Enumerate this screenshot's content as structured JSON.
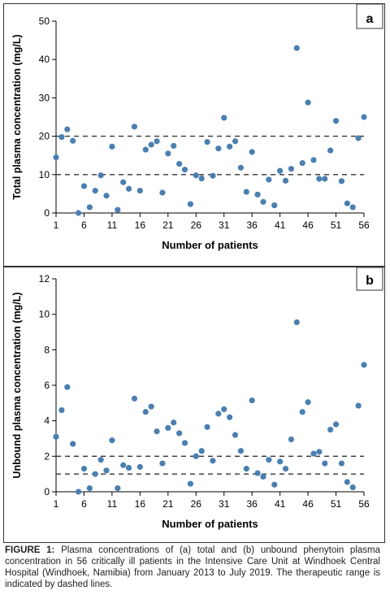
{
  "chart_data": [
    {
      "type": "scatter",
      "panel_label": "a",
      "xlabel": "Number of patients",
      "ylabel": "Total plasma concentration (mg/L)",
      "xlim": [
        1,
        56
      ],
      "ylim": [
        0,
        50
      ],
      "x_ticks": [
        1,
        6,
        11,
        16,
        21,
        26,
        31,
        36,
        41,
        46,
        51,
        56
      ],
      "y_ticks": [
        0,
        10,
        20,
        30,
        40,
        50
      ],
      "marker_color": "#4a7fb0",
      "reference_lines": [
        10,
        20
      ],
      "points": [
        [
          1,
          14.5
        ],
        [
          2,
          19.8
        ],
        [
          3,
          21.8
        ],
        [
          4,
          18.8
        ],
        [
          5,
          0
        ],
        [
          6,
          7
        ],
        [
          7,
          1.5
        ],
        [
          8,
          5.8
        ],
        [
          9,
          9.8
        ],
        [
          10,
          4.5
        ],
        [
          11,
          17.3
        ],
        [
          12,
          0.8
        ],
        [
          13,
          8
        ],
        [
          14,
          6.3
        ],
        [
          15,
          22.5
        ],
        [
          16,
          5.8
        ],
        [
          17,
          16.5
        ],
        [
          18,
          17.8
        ],
        [
          19,
          18.7
        ],
        [
          20,
          5.3
        ],
        [
          21,
          15.5
        ],
        [
          22,
          17.5
        ],
        [
          23,
          12.8
        ],
        [
          24,
          11.3
        ],
        [
          25,
          2.3
        ],
        [
          26,
          9.8
        ],
        [
          27,
          9
        ],
        [
          28,
          18.5
        ],
        [
          29,
          9.7
        ],
        [
          30,
          16.8
        ],
        [
          31,
          24.8
        ],
        [
          32,
          17.3
        ],
        [
          33,
          18.7
        ],
        [
          34,
          11.8
        ],
        [
          35,
          5.5
        ],
        [
          36,
          15.9
        ],
        [
          37,
          4.8
        ],
        [
          38,
          2.9
        ],
        [
          39,
          8.7
        ],
        [
          40,
          2
        ],
        [
          41,
          11
        ],
        [
          42,
          8.4
        ],
        [
          43,
          11.5
        ],
        [
          44,
          43
        ],
        [
          45,
          13
        ],
        [
          46,
          28.8
        ],
        [
          47,
          13.8
        ],
        [
          48,
          8.9
        ],
        [
          49,
          8.9
        ],
        [
          50,
          16.3
        ],
        [
          51,
          24
        ],
        [
          52,
          8.3
        ],
        [
          53,
          2.5
        ],
        [
          54,
          1.5
        ],
        [
          55,
          19.5
        ],
        [
          56,
          25
        ]
      ]
    },
    {
      "type": "scatter",
      "panel_label": "b",
      "xlabel": "Number of patients",
      "ylabel": "Unbound plasma concentration (mg/L)",
      "xlim": [
        1,
        56
      ],
      "ylim": [
        0,
        12
      ],
      "x_ticks": [
        1,
        6,
        11,
        16,
        21,
        26,
        31,
        36,
        41,
        46,
        51,
        56
      ],
      "y_ticks": [
        0,
        2,
        4,
        6,
        8,
        10,
        12
      ],
      "marker_color": "#4a7fb0",
      "reference_lines": [
        1,
        2
      ],
      "points": [
        [
          1,
          3.1
        ],
        [
          2,
          4.6
        ],
        [
          3,
          5.9
        ],
        [
          4,
          2.7
        ],
        [
          5,
          0
        ],
        [
          6,
          1.3
        ],
        [
          7,
          0.2
        ],
        [
          8,
          1
        ],
        [
          9,
          1.8
        ],
        [
          10,
          1.2
        ],
        [
          11,
          2.9
        ],
        [
          12,
          0.2
        ],
        [
          13,
          1.5
        ],
        [
          14,
          1.35
        ],
        [
          15,
          5.25
        ],
        [
          16,
          1.4
        ],
        [
          17,
          4.5
        ],
        [
          18,
          4.8
        ],
        [
          19,
          3.4
        ],
        [
          20,
          1.6
        ],
        [
          21,
          3.6
        ],
        [
          22,
          3.9
        ],
        [
          23,
          3.3
        ],
        [
          24,
          2.75
        ],
        [
          25,
          0.45
        ],
        [
          26,
          2
        ],
        [
          27,
          2.3
        ],
        [
          28,
          3.65
        ],
        [
          29,
          1.75
        ],
        [
          30,
          4.4
        ],
        [
          31,
          4.65
        ],
        [
          32,
          4.2
        ],
        [
          33,
          3.2
        ],
        [
          34,
          2.3
        ],
        [
          35,
          1.3
        ],
        [
          36,
          5.15
        ],
        [
          37,
          1.05
        ],
        [
          38,
          0.85
        ],
        [
          39,
          1.8
        ],
        [
          40,
          0.4
        ],
        [
          41,
          1.7
        ],
        [
          42,
          1.3
        ],
        [
          43,
          2.95
        ],
        [
          44,
          9.55
        ],
        [
          45,
          4.5
        ],
        [
          46,
          5.05
        ],
        [
          47,
          2.15
        ],
        [
          48,
          2.25
        ],
        [
          49,
          1.6
        ],
        [
          50,
          3.5
        ],
        [
          51,
          3.8
        ],
        [
          52,
          1.6
        ],
        [
          53,
          0.55
        ],
        [
          54,
          0.25
        ],
        [
          55,
          4.85
        ],
        [
          56,
          7.15
        ]
      ]
    }
  ],
  "caption": {
    "label": "FIGURE 1:",
    "text": " Plasma concentrations of (a) total and (b) unbound phenytoin plasma concentration in 56 critically ill patients in the Intensive Care Unit at Windhoek Central Hospital (Windhoek, Namibia) from January 2013 to July 2019. The therapeutic range is indicated by dashed lines."
  }
}
